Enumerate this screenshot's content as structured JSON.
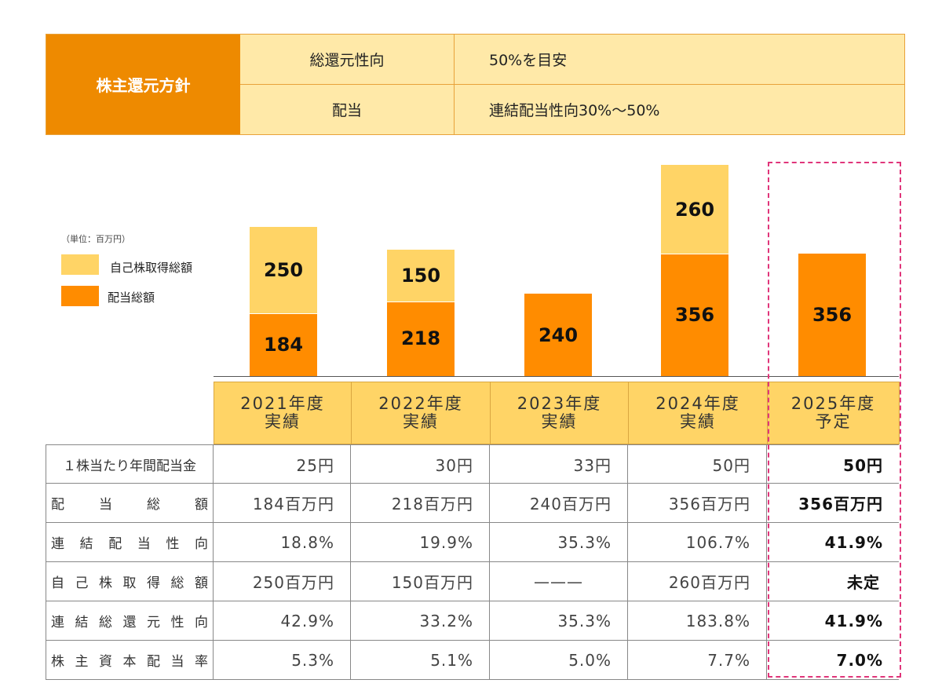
{
  "policy": {
    "title": "株主還元方針",
    "rows": [
      {
        "label": "総還元性向",
        "value": "50%を目安"
      },
      {
        "label": "配当",
        "value": "連結配当性向30%〜50%"
      }
    ]
  },
  "chart_data": {
    "type": "bar",
    "stacked": true,
    "unit_note": "（単位：百万円）",
    "categories": [
      "2021年度 実績",
      "2022年度 実績",
      "2023年度 実績",
      "2024年度 実績",
      "2025年度 予定"
    ],
    "series": [
      {
        "name": "配当総額",
        "color": "#FF8C00",
        "values": [
          184,
          218,
          240,
          356,
          356
        ]
      },
      {
        "name": "自己株取得総額",
        "color": "#FFD466",
        "values": [
          250,
          150,
          null,
          260,
          null
        ]
      }
    ],
    "legend": [
      {
        "label": "自己株取得総額",
        "color": "#FFD466"
      },
      {
        "label": "配当総額",
        "color": "#FF8C00"
      }
    ]
  },
  "table": {
    "headers": [
      [
        "2021年度",
        "実績"
      ],
      [
        "2022年度",
        "実績"
      ],
      [
        "2023年度",
        "実績"
      ],
      [
        "2024年度",
        "実績"
      ],
      [
        "2025年度",
        "予定"
      ]
    ],
    "rows": [
      {
        "label": "１株当たり年間配当金",
        "values": [
          "25円",
          "30円",
          "33円",
          "50円",
          "50円"
        ]
      },
      {
        "label": "配当総額",
        "values": [
          "184百万円",
          "218百万円",
          "240百万円",
          "356百万円",
          "356百万円"
        ]
      },
      {
        "label": "連結配当性向",
        "values": [
          "18.8%",
          "19.9%",
          "35.3%",
          "106.7%",
          "41.9%"
        ]
      },
      {
        "label": "自己株取得総額",
        "values": [
          "250百万円",
          "150百万円",
          "———",
          "260百万円",
          "未定"
        ]
      },
      {
        "label": "連結総還元性向",
        "values": [
          "42.9%",
          "33.2%",
          "35.3%",
          "183.8%",
          "41.9%"
        ]
      },
      {
        "label": "株主資本配当率",
        "values": [
          "5.3%",
          "5.1%",
          "5.0%",
          "7.7%",
          "7.0%"
        ]
      }
    ]
  }
}
